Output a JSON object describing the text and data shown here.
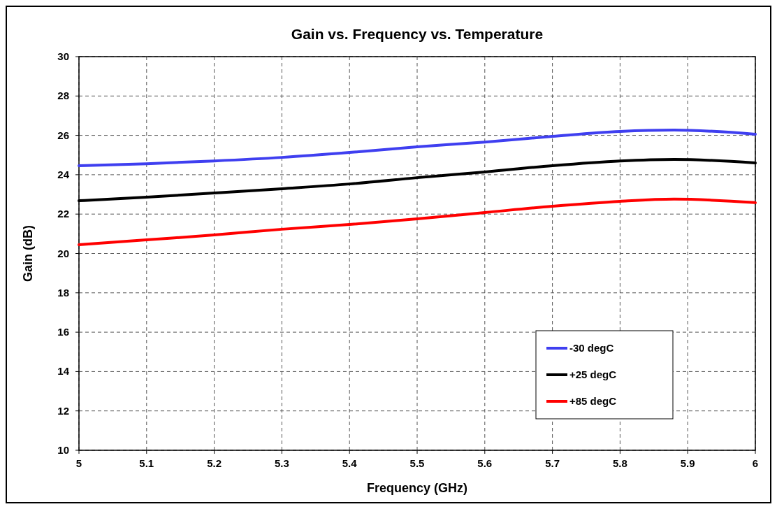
{
  "chart_data": {
    "type": "line",
    "title": "Gain vs. Frequency vs. Temperature",
    "xlabel": "Frequency (GHz)",
    "ylabel": "Gain (dB)",
    "x": [
      5,
      5.1,
      5.2,
      5.3,
      5.4,
      5.5,
      5.6,
      5.7,
      5.8,
      5.88,
      6
    ],
    "series": [
      {
        "name": "-30 degC",
        "color": "#3f3ff0",
        "values": [
          24.46,
          24.56,
          24.7,
          24.88,
          25.13,
          25.42,
          25.66,
          25.95,
          26.2,
          26.27,
          26.06
        ]
      },
      {
        "name": "+25 degC",
        "color": "#000000",
        "values": [
          22.68,
          22.86,
          23.07,
          23.29,
          23.53,
          23.85,
          24.14,
          24.46,
          24.7,
          24.78,
          24.6
        ]
      },
      {
        "name": "+85 degC",
        "color": "#ff0000",
        "values": [
          20.44,
          20.69,
          20.94,
          21.23,
          21.47,
          21.76,
          22.08,
          22.4,
          22.65,
          22.76,
          22.58
        ]
      }
    ],
    "xlim": [
      5,
      6
    ],
    "xticks": [
      5,
      5.1,
      5.2,
      5.3,
      5.4,
      5.5,
      5.6,
      5.7,
      5.8,
      5.9,
      6
    ],
    "ylim": [
      10,
      30
    ],
    "yticks": [
      10,
      12,
      14,
      16,
      18,
      20,
      22,
      24,
      26,
      28,
      30
    ],
    "grid": true,
    "legend": "bottom right",
    "marker": "none",
    "line_style": "solid"
  }
}
